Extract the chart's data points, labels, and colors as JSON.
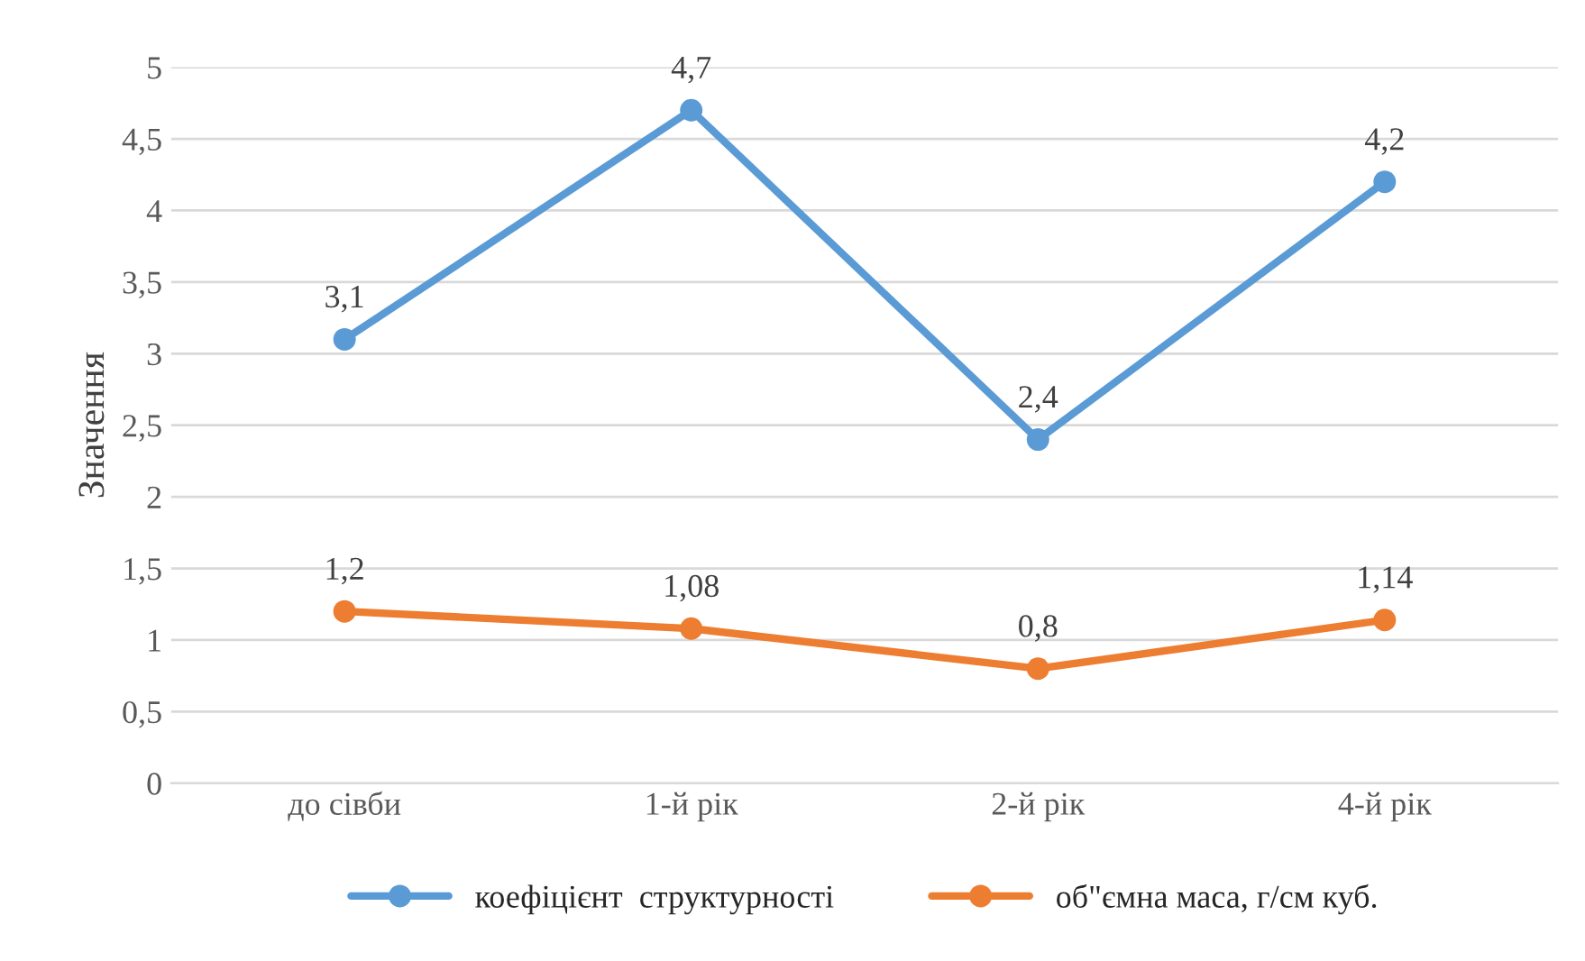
{
  "chart_data": {
    "type": "line",
    "ylabel": "Значення",
    "categories": [
      "до сівби",
      "1-й рік",
      "2-й рік",
      "4-й рік"
    ],
    "series": [
      {
        "name": "коефіцієнт  структурності",
        "color": "#5b9bd5",
        "values": [
          3.1,
          4.7,
          2.4,
          4.2
        ],
        "value_labels": [
          "3,1",
          "4,7",
          "2,4",
          "4,2"
        ]
      },
      {
        "name": "об\"ємна маса, г/см куб.",
        "color": "#ed7d31",
        "values": [
          1.2,
          1.08,
          0.8,
          1.14
        ],
        "value_labels": [
          "1,2",
          "1,08",
          "0,8",
          "1,14"
        ]
      }
    ],
    "ylim": [
      0,
      5
    ],
    "yticks": [
      0,
      {
        "value": 0.5,
        "label": "0,5"
      },
      1,
      {
        "value": 1.5,
        "label": "1,5"
      },
      2,
      {
        "value": 2.5,
        "label": "2,5"
      },
      3,
      {
        "value": 3.5,
        "label": "3,5"
      },
      4,
      {
        "value": 4.5,
        "label": "4,5"
      },
      5
    ],
    "grid": "y",
    "legend": "bottom",
    "marker": "circle",
    "line_style": "solid"
  }
}
